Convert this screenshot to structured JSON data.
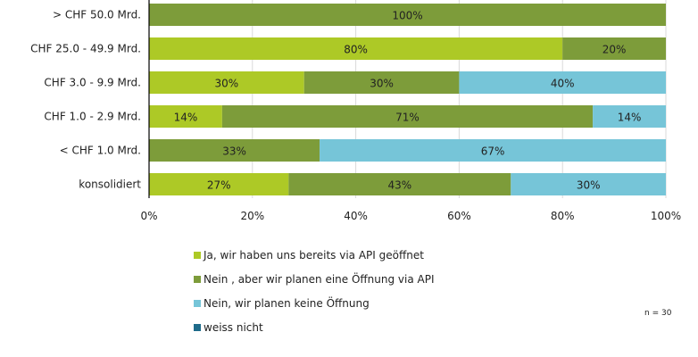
{
  "chart_data": {
    "type": "bar",
    "orientation": "horizontal",
    "stacked": "100%",
    "categories": [
      "> CHF 50.0 Mrd.",
      "CHF 25.0 - 49.9 Mrd.",
      "CHF 3.0 - 9.9 Mrd.",
      "CHF 1.0 - 2.9 Mrd.",
      "< CHF 1.0 Mrd.",
      "konsolidiert"
    ],
    "series": [
      {
        "name": "Ja, wir haben uns bereits via API geöffnet",
        "color": "#adc926",
        "values": [
          0,
          80,
          30,
          14,
          0,
          27
        ]
      },
      {
        "name": "Nein , aber wir planen eine Öffnung via API",
        "color": "#7d9c3a",
        "values": [
          100,
          20,
          30,
          71,
          33,
          43
        ]
      },
      {
        "name": "Nein, wir planen keine Öffnung",
        "color": "#76c5d8",
        "values": [
          0,
          0,
          40,
          14,
          67,
          30
        ]
      },
      {
        "name": "weiss nicht",
        "color": "#1e6b8a",
        "values": [
          0,
          0,
          0,
          0,
          0,
          0
        ]
      }
    ],
    "xlim": [
      0,
      100
    ],
    "xticks": [
      "0%",
      "20%",
      "40%",
      "60%",
      "80%",
      "100%"
    ],
    "grid": true,
    "legend_position": "bottom",
    "data_label_suffix": "%",
    "note": "n = 30"
  }
}
